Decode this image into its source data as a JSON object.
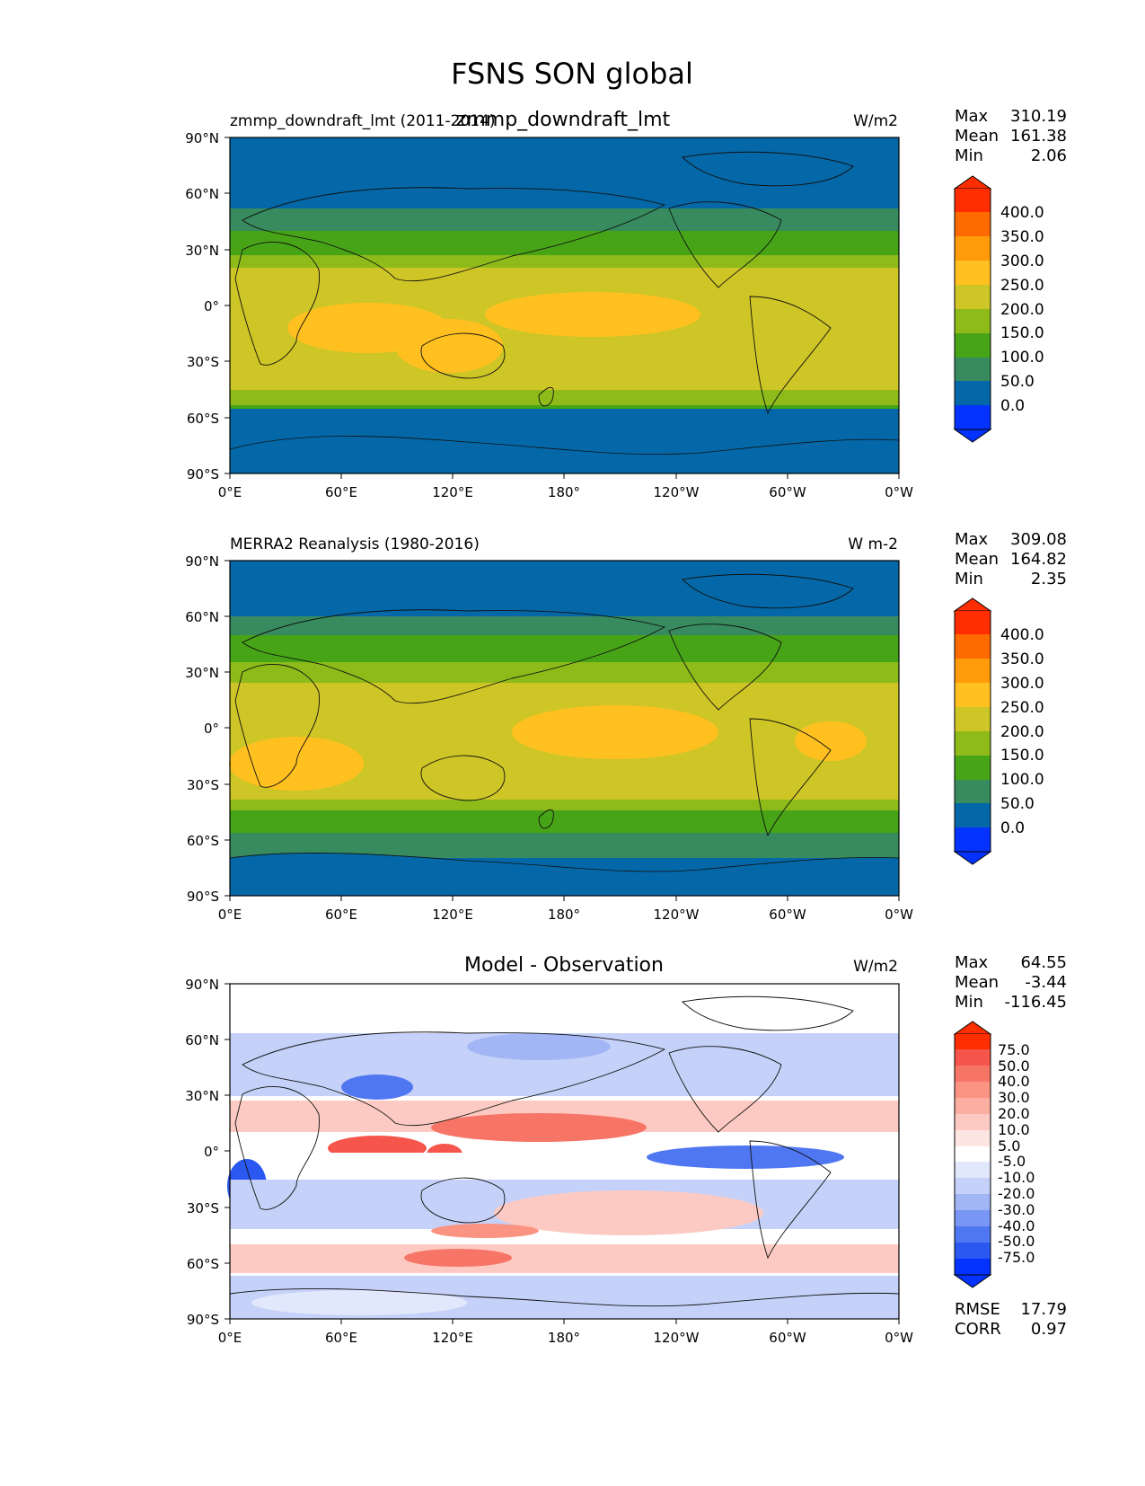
{
  "figure": {
    "title": "FSNS SON global"
  },
  "panels": [
    {
      "left_title": "zmmp_downdraft_lmt (2011-2014)",
      "center_title": "zmmp_downdraft_lmt",
      "units": "W/m2",
      "stats": {
        "labels": [
          "Max",
          "Mean",
          "Min"
        ],
        "values": [
          "310.19",
          "161.38",
          "2.06"
        ]
      },
      "colorbar_ticks": [
        "400.0",
        "350.0",
        "300.0",
        "250.0",
        "200.0",
        "150.0",
        "100.0",
        "50.0",
        "0.0"
      ]
    },
    {
      "left_title": "MERRA2 Reanalysis (1980-2016)",
      "center_title": "",
      "units": "W m-2",
      "stats": {
        "labels": [
          "Max",
          "Mean",
          "Min"
        ],
        "values": [
          "309.08",
          "164.82",
          "2.35"
        ]
      },
      "colorbar_ticks": [
        "400.0",
        "350.0",
        "300.0",
        "250.0",
        "200.0",
        "150.0",
        "100.0",
        "50.0",
        "0.0"
      ]
    },
    {
      "left_title": "",
      "center_title": "Model - Observation",
      "units": "W/m2",
      "stats": {
        "labels": [
          "Max",
          "Mean",
          "Min"
        ],
        "values": [
          "64.55",
          "-3.44",
          "-116.45"
        ]
      },
      "colorbar_ticks": [
        "75.0",
        "50.0",
        "40.0",
        "30.0",
        "20.0",
        "10.0",
        "5.0",
        "-5.0",
        "-10.0",
        "-20.0",
        "-30.0",
        "-40.0",
        "-50.0",
        "-75.0"
      ],
      "extra_stats": {
        "labels": [
          "RMSE",
          "CORR"
        ],
        "values": [
          "17.79",
          "0.97"
        ]
      }
    }
  ],
  "axes": {
    "x_ticks": [
      "0°E",
      "60°E",
      "120°E",
      "180°",
      "120°W",
      "60°W",
      "0°W"
    ],
    "y_ticks": [
      "90°N",
      "60°N",
      "30°N",
      "0°",
      "30°S",
      "60°S",
      "90°S"
    ]
  },
  "chart_data": {
    "type": "heatmap",
    "projection": "equirectangular",
    "x_range": [
      0,
      360
    ],
    "y_range": [
      -90,
      90
    ],
    "abs_colors": [
      "#0433ff",
      "#0468a8",
      "#378b5e",
      "#47a417",
      "#8ebb1a",
      "#cec526",
      "#ffc020",
      "#ff9a0a",
      "#ff6a00",
      "#ff2e00"
    ],
    "diff_colors": [
      "#0433ff",
      "#2a58f0",
      "#5077f2",
      "#7996f4",
      "#a2b6f6",
      "#c5d1f8",
      "#e2e8fb",
      "#ffffff",
      "#fde6e2",
      "#fccac2",
      "#fcaea1",
      "#fb9382",
      "#f77566",
      "#f5554b",
      "#ff2e00"
    ]
  }
}
